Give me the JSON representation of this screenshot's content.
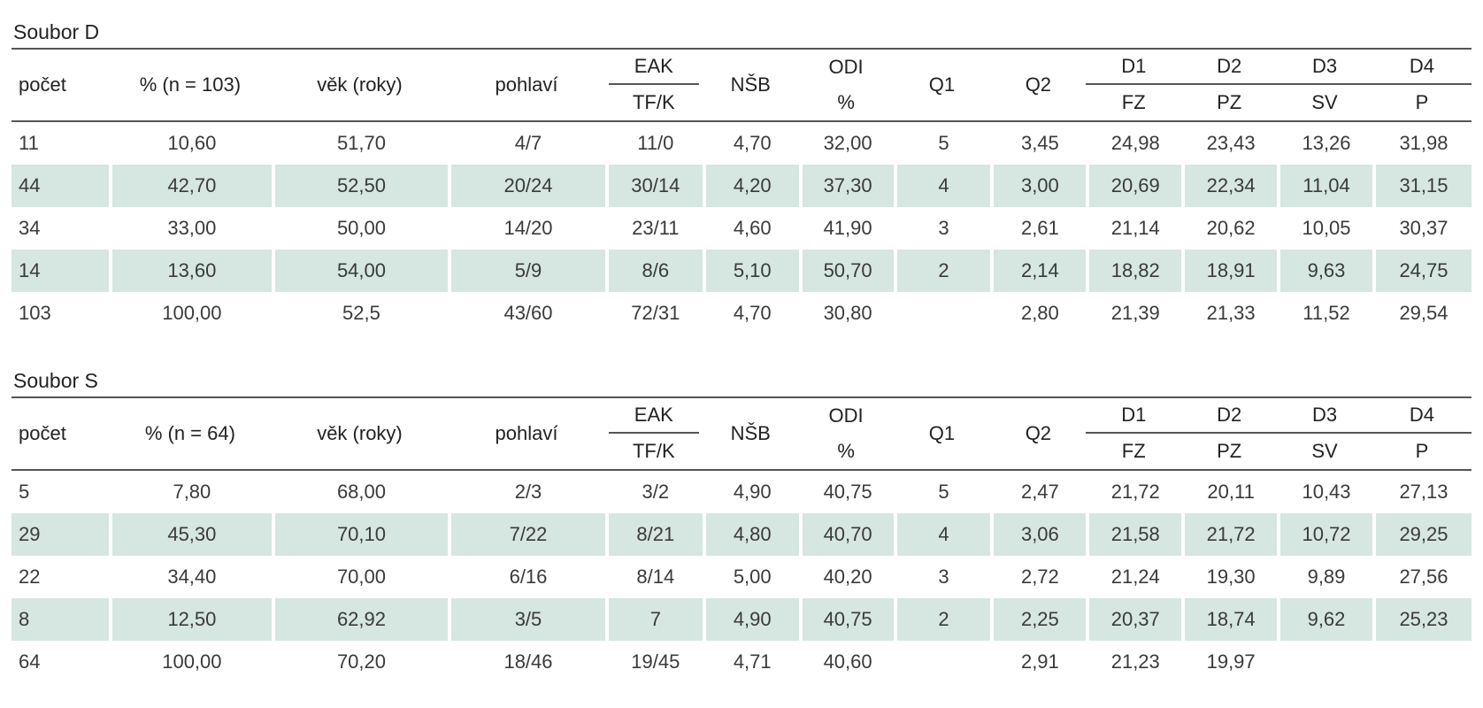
{
  "tables": [
    {
      "title": "Soubor D",
      "columns": [
        {
          "label": "počet"
        },
        {
          "label": "% (n = 103)"
        },
        {
          "label": "věk (roky)"
        },
        {
          "label": "pohlaví"
        },
        {
          "label": "EAK",
          "sub": "TF/K"
        },
        {
          "label": "NŠB"
        },
        {
          "label": "ODI",
          "sub": "%"
        },
        {
          "label": "Q1"
        },
        {
          "label": "Q2"
        },
        {
          "label": "D1",
          "sub": "FZ"
        },
        {
          "label": "D2",
          "sub": "PZ"
        },
        {
          "label": "D3",
          "sub": "SV"
        },
        {
          "label": "D4",
          "sub": "P"
        }
      ],
      "rows": [
        [
          "11",
          "10,60",
          "51,70",
          "4/7",
          "11/0",
          "4,70",
          "32,00",
          "5",
          "3,45",
          "24,98",
          "23,43",
          "13,26",
          "31,98"
        ],
        [
          "44",
          "42,70",
          "52,50",
          "20/24",
          "30/14",
          "4,20",
          "37,30",
          "4",
          "3,00",
          "20,69",
          "22,34",
          "11,04",
          "31,15"
        ],
        [
          "34",
          "33,00",
          "50,00",
          "14/20",
          "23/11",
          "4,60",
          "41,90",
          "3",
          "2,61",
          "21,14",
          "20,62",
          "10,05",
          "30,37"
        ],
        [
          "14",
          "13,60",
          "54,00",
          "5/9",
          "8/6",
          "5,10",
          "50,70",
          "2",
          "2,14",
          "18,82",
          "18,91",
          "9,63",
          "24,75"
        ],
        [
          "103",
          "100,00",
          "52,5",
          "43/60",
          "72/31",
          "4,70",
          "30,80",
          null,
          "2,80",
          "21,39",
          "21,33",
          "11,52",
          "29,54"
        ]
      ]
    },
    {
      "title": "Soubor S",
      "columns": [
        {
          "label": "počet"
        },
        {
          "label": "% (n = 64)"
        },
        {
          "label": "věk (roky)"
        },
        {
          "label": "pohlaví"
        },
        {
          "label": "EAK",
          "sub": "TF/K"
        },
        {
          "label": "NŠB"
        },
        {
          "label": "ODI",
          "sub": "%"
        },
        {
          "label": "Q1"
        },
        {
          "label": "Q2"
        },
        {
          "label": "D1",
          "sub": "FZ"
        },
        {
          "label": "D2",
          "sub": "PZ"
        },
        {
          "label": "D3",
          "sub": "SV"
        },
        {
          "label": "D4",
          "sub": "P"
        }
      ],
      "rows": [
        [
          "5",
          "7,80",
          "68,00",
          "2/3",
          "3/2",
          "4,90",
          "40,75",
          "5",
          "2,47",
          "21,72",
          "20,11",
          "10,43",
          "27,13"
        ],
        [
          "29",
          "45,30",
          "70,10",
          "7/22",
          "8/21",
          "4,80",
          "40,70",
          "4",
          "3,06",
          "21,58",
          "21,72",
          "10,72",
          "29,25"
        ],
        [
          "22",
          "34,40",
          "70,00",
          "6/16",
          "8/14",
          "5,00",
          "40,20",
          "3",
          "2,72",
          "21,24",
          "19,30",
          "9,89",
          "27,56"
        ],
        [
          "8",
          "12,50",
          "62,92",
          "3/5",
          "7",
          "4,90",
          "40,75",
          "2",
          "2,25",
          "20,37",
          "18,74",
          "9,62",
          "25,23"
        ],
        [
          "64",
          "100,00",
          "70,20",
          "18/46",
          "19/45",
          "4,71",
          "40,60",
          null,
          "2,91",
          "21,23",
          "19,97",
          null,
          null
        ]
      ]
    }
  ]
}
